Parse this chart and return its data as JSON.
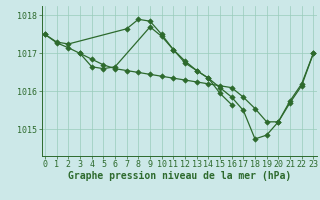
{
  "background_color": "#cce8e8",
  "grid_color": "#99ccbb",
  "line_color": "#2d6a2d",
  "xlabel": "Graphe pression niveau de la mer (hPa)",
  "xlabel_fontsize": 7,
  "tick_fontsize": 6,
  "ytick_labels": [
    1015,
    1016,
    1017,
    1018
  ],
  "ylim": [
    1014.3,
    1018.25
  ],
  "xlim": [
    -0.3,
    23.3
  ],
  "series1_x": [
    0,
    1,
    2,
    7,
    8,
    9,
    10,
    11,
    12,
    13,
    14,
    15,
    16
  ],
  "series1_y": [
    1017.5,
    1017.3,
    1017.25,
    1017.65,
    1017.9,
    1017.85,
    1017.5,
    1017.1,
    1016.8,
    1016.55,
    1016.35,
    1015.95,
    1015.65
  ],
  "series2_x": [
    0,
    1,
    2,
    3,
    4,
    5,
    6,
    7,
    8,
    9,
    10,
    11,
    12,
    13,
    14,
    15,
    16,
    17,
    18,
    19,
    20,
    21,
    22,
    23
  ],
  "series2_y": [
    1017.5,
    1017.28,
    1017.15,
    1017.0,
    1016.85,
    1016.7,
    1016.6,
    1016.55,
    1016.5,
    1016.45,
    1016.4,
    1016.35,
    1016.3,
    1016.25,
    1016.2,
    1016.15,
    1016.1,
    1015.85,
    1015.55,
    1015.2,
    1015.2,
    1015.7,
    1016.15,
    1017.0
  ],
  "series3_x": [
    3,
    4,
    5,
    6,
    9,
    10,
    11,
    12,
    13,
    14,
    15,
    16,
    17,
    18,
    19,
    20,
    21,
    22,
    23
  ],
  "series3_y": [
    1017.0,
    1016.65,
    1016.6,
    1016.65,
    1017.7,
    1017.45,
    1017.1,
    1016.75,
    1016.55,
    1016.35,
    1016.1,
    1015.85,
    1015.5,
    1014.75,
    1014.85,
    1015.2,
    1015.75,
    1016.2,
    1017.0
  ]
}
